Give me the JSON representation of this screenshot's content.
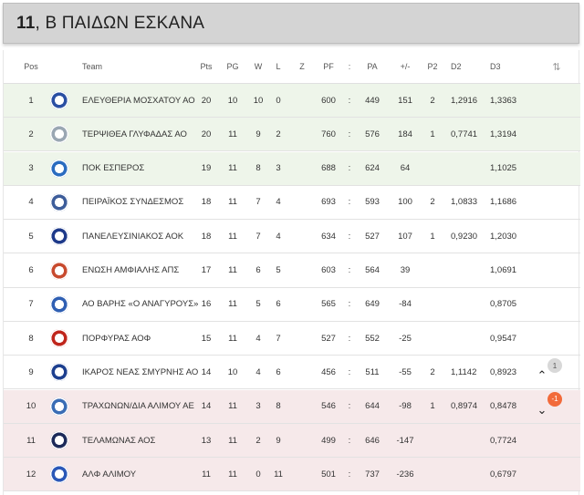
{
  "title": {
    "number": "11",
    "text": ", Β ΠΑΙΔΩΝ ΕΣΚΑΝΑ"
  },
  "headers": {
    "pos": "Pos",
    "team": "Team",
    "pts": "Pts",
    "pg": "PG",
    "w": "W",
    "l": "L",
    "z": "Z",
    "pf": "PF",
    "sep": ":",
    "pa": "PA",
    "diff": "+/-",
    "p2": "P2",
    "d2": "D2",
    "d3": "D3"
  },
  "icons": {
    "sort": "sort-arrows-icon",
    "up": "chevron-up-icon",
    "down": "chevron-down-icon"
  },
  "colors": {
    "zone_top": "#eef5ea",
    "zone_bottom": "#f6e9ea",
    "badge_up": "#d8d8d8",
    "badge_down": "#f26a3a"
  },
  "rows": [
    {
      "pos": "1",
      "team": "ΕΛΕΥΘΕΡΙΑ ΜΟΣΧΑΤΟΥ ΑΟ",
      "pts": "20",
      "pg": "10",
      "w": "10",
      "l": "0",
      "z": "",
      "pf": "600",
      "sep": ":",
      "pa": "449",
      "diff": "151",
      "p2": "2",
      "d2": "1,2916",
      "d3": "1,3363",
      "zone": "top",
      "logo": "#2a4fa3"
    },
    {
      "pos": "2",
      "team": "ΤΕΡΨΙΘΕΑ ΓΛΥΦΑΔΑΣ ΑΟ",
      "pts": "20",
      "pg": "11",
      "w": "9",
      "l": "2",
      "z": "",
      "pf": "760",
      "sep": ":",
      "pa": "576",
      "diff": "184",
      "p2": "1",
      "d2": "0,7741",
      "d3": "1,3194",
      "zone": "top",
      "logo": "#9aa7b3"
    },
    {
      "pos": "3",
      "team": "ΠΟΚ ΕΣΠΕΡΟΣ",
      "pts": "19",
      "pg": "11",
      "w": "8",
      "l": "3",
      "z": "",
      "pf": "688",
      "sep": ":",
      "pa": "624",
      "diff": "64",
      "p2": "",
      "d2": "",
      "d3": "1,1025",
      "zone": "top",
      "logo": "#2a6cc0"
    },
    {
      "pos": "4",
      "team": "ΠΕΙΡΑΪΚΟΣ ΣΥΝΔΕΣΜΟΣ",
      "pts": "18",
      "pg": "11",
      "w": "7",
      "l": "4",
      "z": "",
      "pf": "693",
      "sep": ":",
      "pa": "593",
      "diff": "100",
      "p2": "2",
      "d2": "1,0833",
      "d3": "1,1686",
      "zone": "",
      "logo": "#3d5d9a"
    },
    {
      "pos": "5",
      "team": "ΠΑΝΕΛΕΥΣΙΝΙΑΚΟΣ ΑΟΚ",
      "pts": "18",
      "pg": "11",
      "w": "7",
      "l": "4",
      "z": "",
      "pf": "634",
      "sep": ":",
      "pa": "527",
      "diff": "107",
      "p2": "1",
      "d2": "0,9230",
      "d3": "1,2030",
      "zone": "",
      "logo": "#1e3a8a"
    },
    {
      "pos": "6",
      "team": "ΕΝΩΣΗ ΑΜΦΙΑΛΗΣ ΑΠΣ",
      "pts": "17",
      "pg": "11",
      "w": "6",
      "l": "5",
      "z": "",
      "pf": "603",
      "sep": ":",
      "pa": "564",
      "diff": "39",
      "p2": "",
      "d2": "",
      "d3": "1,0691",
      "zone": "",
      "logo": "#c84a2e"
    },
    {
      "pos": "7",
      "team": "ΑΟ ΒΑΡΗΣ «Ο ΑΝΑΓΥΡΟΥΣ»",
      "pts": "16",
      "pg": "11",
      "w": "5",
      "l": "6",
      "z": "",
      "pf": "565",
      "sep": ":",
      "pa": "649",
      "diff": "-84",
      "p2": "",
      "d2": "",
      "d3": "0,8705",
      "zone": "",
      "logo": "#2f5fb3"
    },
    {
      "pos": "8",
      "team": "ΠΟΡΦΥΡΑΣ ΑΟΦ",
      "pts": "15",
      "pg": "11",
      "w": "4",
      "l": "7",
      "z": "",
      "pf": "527",
      "sep": ":",
      "pa": "552",
      "diff": "-25",
      "p2": "",
      "d2": "",
      "d3": "0,9547",
      "zone": "",
      "logo": "#c0261c"
    },
    {
      "pos": "9",
      "team": "ΙΚΑΡΟΣ ΝΕΑΣ ΣΜΥΡΝΗΣ ΑΟ",
      "pts": "14",
      "pg": "10",
      "w": "4",
      "l": "6",
      "z": "",
      "pf": "456",
      "sep": ":",
      "pa": "511",
      "diff": "-55",
      "p2": "2",
      "d2": "1,1142",
      "d3": "0,8923",
      "zone": "",
      "logo": "#1d3f8f",
      "trend": "up",
      "trend_value": "1"
    },
    {
      "pos": "10",
      "team": "ΤΡΑΧΩΝΩΝ/ΔΙΑ ΑΛΙΜΟΥ ΑΕ",
      "pts": "14",
      "pg": "11",
      "w": "3",
      "l": "8",
      "z": "",
      "pf": "546",
      "sep": ":",
      "pa": "644",
      "diff": "-98",
      "p2": "1",
      "d2": "0,8974",
      "d3": "0,8478",
      "zone": "bottom",
      "logo": "#3a6db5",
      "trend": "down",
      "trend_value": "-1"
    },
    {
      "pos": "11",
      "team": "ΤΕΛΑΜΩΝΑΣ ΑΟΣ",
      "pts": "13",
      "pg": "11",
      "w": "2",
      "l": "9",
      "z": "",
      "pf": "499",
      "sep": ":",
      "pa": "646",
      "diff": "-147",
      "p2": "",
      "d2": "",
      "d3": "0,7724",
      "zone": "bottom",
      "logo": "#1c2a5a"
    },
    {
      "pos": "12",
      "team": "ΑΛΦ ΑΛΙΜΟΥ",
      "pts": "11",
      "pg": "11",
      "w": "0",
      "l": "11",
      "z": "",
      "pf": "501",
      "sep": ":",
      "pa": "737",
      "diff": "-236",
      "p2": "",
      "d2": "",
      "d3": "0,6797",
      "zone": "bottom",
      "logo": "#2b58b8"
    }
  ]
}
